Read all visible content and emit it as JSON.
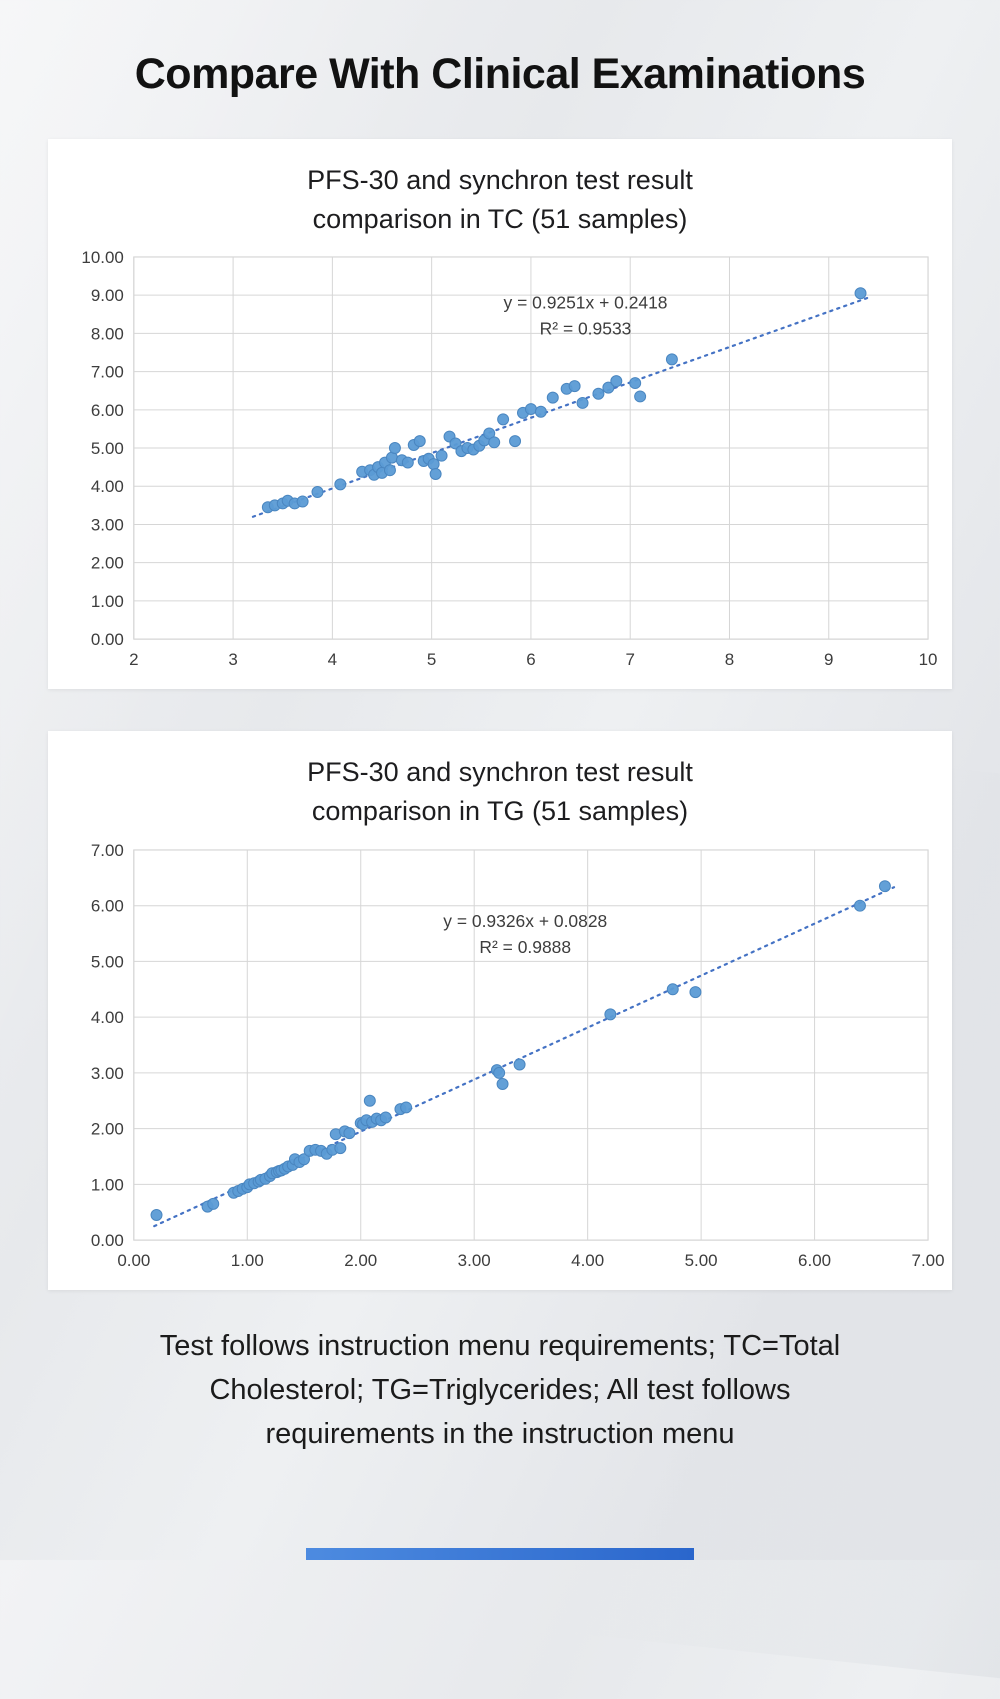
{
  "page": {
    "title": "Compare With Clinical Examinations",
    "footer_lines": [
      "Test follows instruction menu requirements; TC=Total",
      "Cholesterol; TG=Triglycerides; All test follows",
      "requirements in the instruction menu"
    ]
  },
  "colors": {
    "point": "#5b9bd5",
    "point_edge": "#4a86c0",
    "trend": "#4472c4",
    "grid": "#d6d6d6",
    "axis_text": "#3d3d3d",
    "accent_bar_left": "#4d8be0",
    "accent_bar_right": "#2a66cc"
  },
  "chart_data": [
    {
      "type": "scatter",
      "title_line1": "PFS-30 and synchron test result",
      "title_line2": "comparison in TC (51 samples)",
      "equation": "y = 0.9251x + 0.2418",
      "r_squared": "R² = 0.9533",
      "xlim": [
        2,
        10
      ],
      "ylim": [
        0,
        10
      ],
      "xticks": [
        "2",
        "3",
        "4",
        "5",
        "6",
        "7",
        "8",
        "9",
        "10"
      ],
      "yticks": [
        "0.00",
        "1.00",
        "2.00",
        "3.00",
        "4.00",
        "5.00",
        "6.00",
        "7.00",
        "8.00",
        "9.00",
        "10.00"
      ],
      "grid": true,
      "legend": "none",
      "annotation_pos": {
        "x": 6.55,
        "y": 8.65
      },
      "trend": {
        "slope": 0.9251,
        "intercept": 0.2418,
        "x_start": 3.2,
        "x_end": 9.4
      },
      "points": [
        [
          3.35,
          3.45
        ],
        [
          3.42,
          3.5
        ],
        [
          3.5,
          3.55
        ],
        [
          3.55,
          3.62
        ],
        [
          3.62,
          3.55
        ],
        [
          3.7,
          3.6
        ],
        [
          3.85,
          3.85
        ],
        [
          4.08,
          4.05
        ],
        [
          4.3,
          4.38
        ],
        [
          4.38,
          4.42
        ],
        [
          4.42,
          4.3
        ],
        [
          4.46,
          4.5
        ],
        [
          4.5,
          4.35
        ],
        [
          4.53,
          4.62
        ],
        [
          4.58,
          4.42
        ],
        [
          4.6,
          4.75
        ],
        [
          4.63,
          5.0
        ],
        [
          4.7,
          4.68
        ],
        [
          4.76,
          4.62
        ],
        [
          4.82,
          5.08
        ],
        [
          4.88,
          5.18
        ],
        [
          4.92,
          4.66
        ],
        [
          4.97,
          4.72
        ],
        [
          5.02,
          4.58
        ],
        [
          5.04,
          4.32
        ],
        [
          5.1,
          4.8
        ],
        [
          5.18,
          5.3
        ],
        [
          5.24,
          5.12
        ],
        [
          5.3,
          4.92
        ],
        [
          5.36,
          5.0
        ],
        [
          5.42,
          4.96
        ],
        [
          5.48,
          5.06
        ],
        [
          5.53,
          5.2
        ],
        [
          5.58,
          5.38
        ],
        [
          5.63,
          5.15
        ],
        [
          5.72,
          5.75
        ],
        [
          5.84,
          5.18
        ],
        [
          5.92,
          5.92
        ],
        [
          6.0,
          6.02
        ],
        [
          6.1,
          5.95
        ],
        [
          6.22,
          6.32
        ],
        [
          6.36,
          6.55
        ],
        [
          6.44,
          6.62
        ],
        [
          6.52,
          6.18
        ],
        [
          6.68,
          6.42
        ],
        [
          6.78,
          6.58
        ],
        [
          6.86,
          6.75
        ],
        [
          7.05,
          6.7
        ],
        [
          7.1,
          6.35
        ],
        [
          7.42,
          7.32
        ],
        [
          9.32,
          9.05
        ]
      ]
    },
    {
      "type": "scatter",
      "title_line1": "PFS-30 and synchron test result",
      "title_line2": "comparison in TG (51 samples)",
      "equation": "y = 0.9326x + 0.0828",
      "r_squared": "R² = 0.9888",
      "xlim": [
        0,
        7
      ],
      "ylim": [
        0,
        7
      ],
      "xticks": [
        "0.00",
        "1.00",
        "2.00",
        "3.00",
        "4.00",
        "5.00",
        "6.00",
        "7.00"
      ],
      "yticks": [
        "0.00",
        "1.00",
        "2.00",
        "3.00",
        "4.00",
        "5.00",
        "6.00",
        "7.00"
      ],
      "grid": true,
      "legend": "none",
      "annotation_pos": {
        "x": 3.45,
        "y": 5.62
      },
      "trend": {
        "slope": 0.9326,
        "intercept": 0.0828,
        "x_start": 0.18,
        "x_end": 6.7
      },
      "points": [
        [
          0.2,
          0.45
        ],
        [
          0.65,
          0.6
        ],
        [
          0.7,
          0.65
        ],
        [
          0.88,
          0.85
        ],
        [
          0.92,
          0.88
        ],
        [
          0.96,
          0.92
        ],
        [
          1.0,
          0.95
        ],
        [
          1.02,
          1.0
        ],
        [
          1.06,
          1.02
        ],
        [
          1.1,
          1.05
        ],
        [
          1.12,
          1.08
        ],
        [
          1.16,
          1.1
        ],
        [
          1.2,
          1.15
        ],
        [
          1.22,
          1.2
        ],
        [
          1.26,
          1.22
        ],
        [
          1.28,
          1.24
        ],
        [
          1.3,
          1.25
        ],
        [
          1.33,
          1.28
        ],
        [
          1.36,
          1.32
        ],
        [
          1.4,
          1.35
        ],
        [
          1.42,
          1.45
        ],
        [
          1.46,
          1.4
        ],
        [
          1.5,
          1.45
        ],
        [
          1.55,
          1.6
        ],
        [
          1.6,
          1.62
        ],
        [
          1.65,
          1.6
        ],
        [
          1.7,
          1.55
        ],
        [
          1.75,
          1.62
        ],
        [
          1.78,
          1.9
        ],
        [
          1.82,
          1.65
        ],
        [
          1.86,
          1.95
        ],
        [
          1.9,
          1.92
        ],
        [
          2.0,
          2.1
        ],
        [
          2.02,
          2.08
        ],
        [
          2.05,
          2.15
        ],
        [
          2.08,
          2.5
        ],
        [
          2.1,
          2.12
        ],
        [
          2.14,
          2.18
        ],
        [
          2.18,
          2.15
        ],
        [
          2.22,
          2.2
        ],
        [
          2.35,
          2.35
        ],
        [
          2.4,
          2.38
        ],
        [
          3.2,
          3.05
        ],
        [
          3.22,
          3.0
        ],
        [
          3.25,
          2.8
        ],
        [
          3.4,
          3.15
        ],
        [
          4.2,
          4.05
        ],
        [
          4.75,
          4.5
        ],
        [
          4.95,
          4.45
        ],
        [
          6.4,
          6.0
        ],
        [
          6.62,
          6.35
        ]
      ]
    }
  ]
}
